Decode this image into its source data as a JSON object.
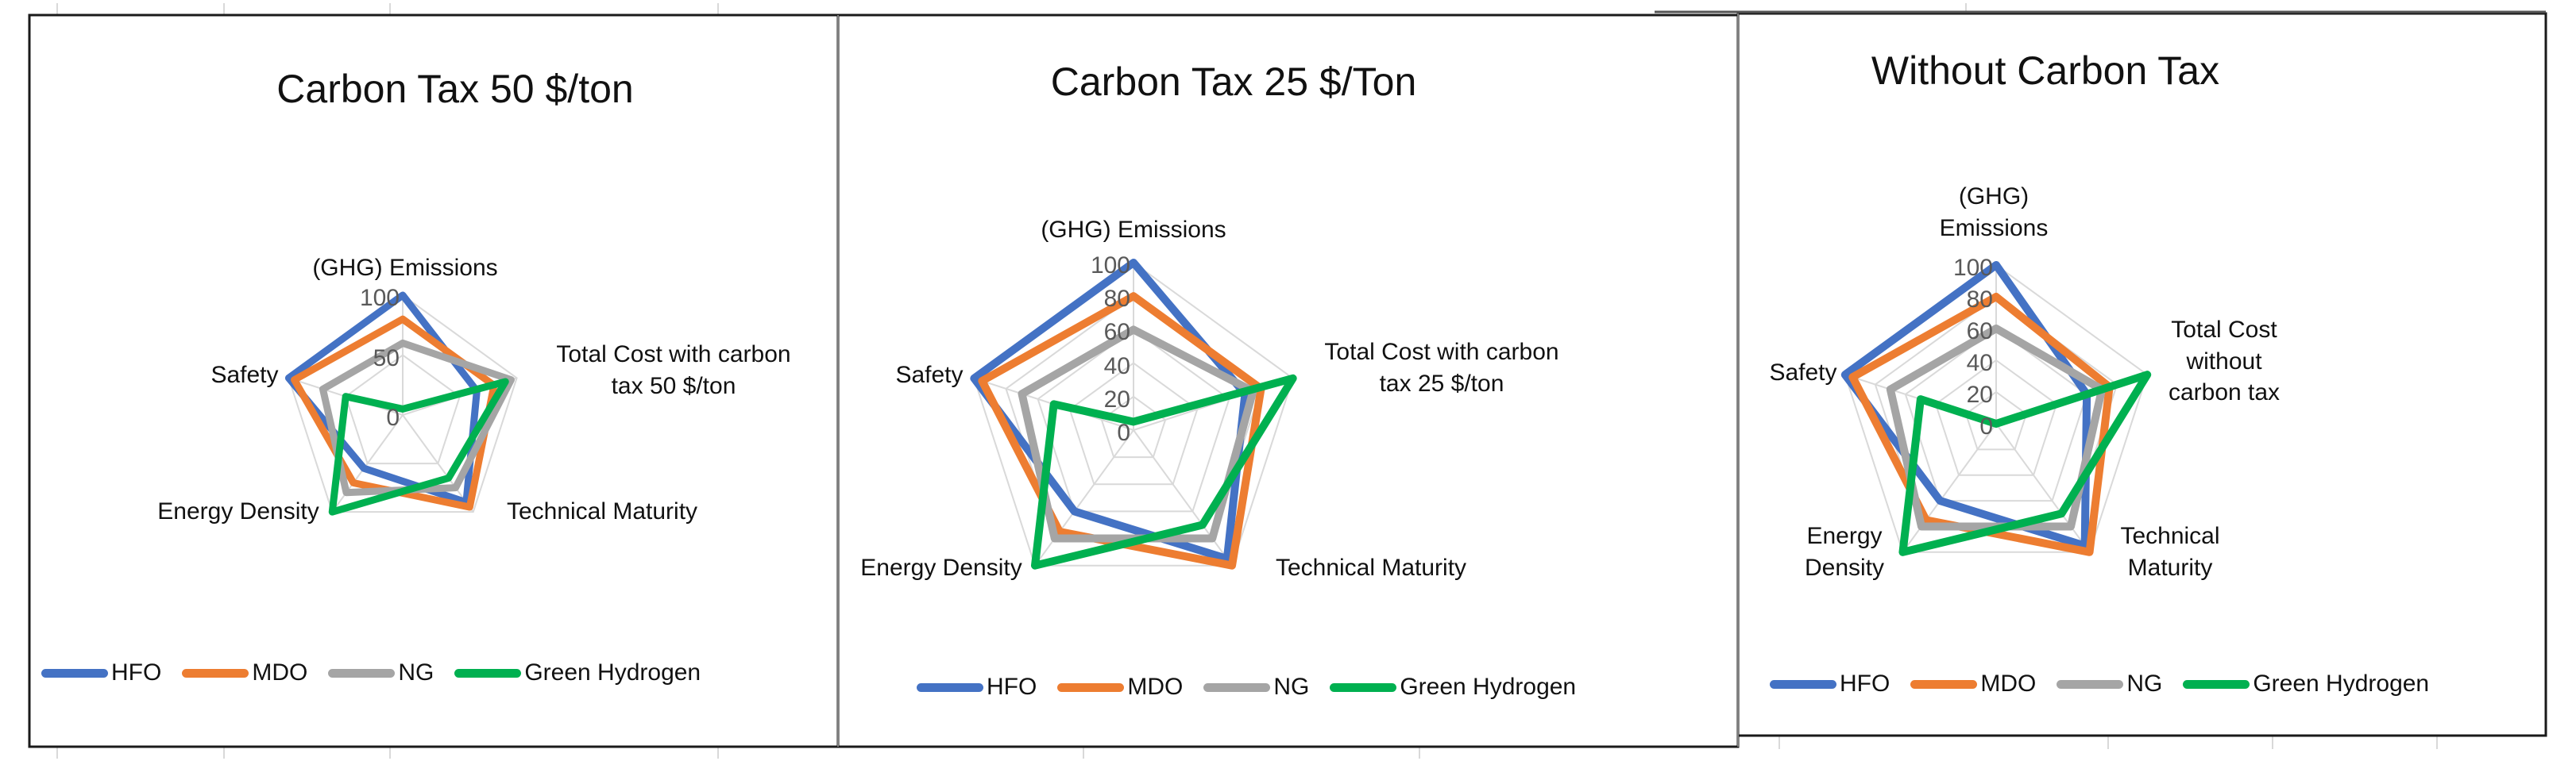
{
  "legend": [
    {
      "label": "HFO",
      "color": "#4472C4"
    },
    {
      "label": "MDO",
      "color": "#ED7D31"
    },
    {
      "label": "NG",
      "color": "#A5A5A5"
    },
    {
      "label": "Green Hydrogen",
      "color": "#00B050"
    }
  ],
  "chart_data": [
    {
      "type": "radar",
      "title": "Carbon Tax 50 $/ton",
      "categories": [
        "(GHG) Emissions",
        "Total Cost with carbon tax 50 $/ton",
        "Technical Maturity",
        "Energy Density",
        "Safety"
      ],
      "axis_labels_display": [
        "(GHG) Emissions",
        "Total Cost with carbon\ntax 50 $/ton",
        "Technical Maturity",
        "Energy Density",
        "Safety"
      ],
      "rlim": [
        0,
        100
      ],
      "ticks": [
        0,
        50,
        100
      ],
      "tick_labels": [
        "0",
        "50",
        "100"
      ],
      "grid": true,
      "legend_position": "bottom",
      "series": [
        {
          "name": "HFO",
          "values": [
            100,
            65,
            90,
            55,
            100
          ]
        },
        {
          "name": "MDO",
          "values": [
            80,
            80,
            95,
            70,
            95
          ]
        },
        {
          "name": "NG",
          "values": [
            60,
            95,
            75,
            80,
            70
          ]
        },
        {
          "name": "Green Hydrogen",
          "values": [
            5,
            90,
            65,
            100,
            50
          ]
        }
      ]
    },
    {
      "type": "radar",
      "title": "Carbon Tax 25 $/Ton",
      "categories": [
        "(GHG) Emissions",
        "Total Cost with carbon tax 25 $/ton",
        "Technical Maturity",
        "Energy Density",
        "Safety"
      ],
      "axis_labels_display": [
        "(GHG) Emissions",
        "Total Cost with carbon\ntax 25 $/ton",
        "Technical Maturity",
        "Energy Density",
        "Safety"
      ],
      "rlim": [
        0,
        100
      ],
      "ticks": [
        0,
        20,
        40,
        60,
        80,
        100
      ],
      "tick_labels": [
        "0",
        "20",
        "40",
        "60",
        "80",
        "100"
      ],
      "grid": true,
      "legend_position": "bottom",
      "series": [
        {
          "name": "HFO",
          "values": [
            100,
            70,
            95,
            60,
            100
          ]
        },
        {
          "name": "MDO",
          "values": [
            80,
            80,
            100,
            75,
            95
          ]
        },
        {
          "name": "NG",
          "values": [
            60,
            75,
            80,
            80,
            70
          ]
        },
        {
          "name": "Green Hydrogen",
          "values": [
            5,
            100,
            70,
            100,
            50
          ]
        }
      ]
    },
    {
      "type": "radar",
      "title": "Without Carbon Tax",
      "categories": [
        "(GHG) Emissions",
        "Total Cost without carbon tax",
        "Technical Maturity",
        "Energy Density",
        "Safety"
      ],
      "axis_labels_display": [
        "(GHG)\nEmissions",
        "Total Cost\nwithout\ncarbon tax",
        "Technical\nMaturity",
        "Energy\nDensity",
        "Safety"
      ],
      "rlim": [
        0,
        100
      ],
      "ticks": [
        0,
        20,
        40,
        60,
        80,
        100
      ],
      "tick_labels": [
        "0",
        "20",
        "40",
        "60",
        "80",
        "100"
      ],
      "grid": true,
      "legend_position": "bottom",
      "series": [
        {
          "name": "HFO",
          "values": [
            100,
            60,
            95,
            60,
            100
          ]
        },
        {
          "name": "MDO",
          "values": [
            80,
            75,
            100,
            75,
            95
          ]
        },
        {
          "name": "NG",
          "values": [
            60,
            70,
            80,
            80,
            70
          ]
        },
        {
          "name": "Green Hydrogen",
          "values": [
            0,
            100,
            70,
            100,
            50
          ]
        }
      ]
    }
  ]
}
